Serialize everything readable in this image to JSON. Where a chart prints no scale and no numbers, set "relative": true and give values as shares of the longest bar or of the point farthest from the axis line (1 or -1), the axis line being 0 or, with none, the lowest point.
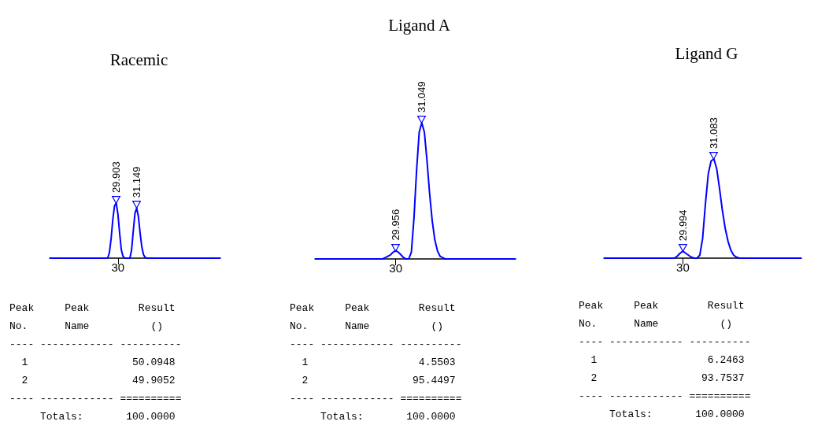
{
  "chart_data": [
    {
      "type": "line",
      "title": "Racemic",
      "relative": true,
      "grid": false,
      "marker": "none",
      "line_style": "solid",
      "color": "#0000ff",
      "categories": [
        null,
        null,
        null,
        null,
        null,
        null,
        null,
        null,
        null,
        null,
        null,
        null,
        null,
        null,
        null,
        null,
        null,
        null,
        null,
        null,
        null,
        null,
        null,
        null,
        null,
        null,
        null,
        null,
        null,
        null,
        null,
        null,
        null,
        null,
        null,
        null,
        null,
        null,
        null,
        null,
        null,
        null,
        null,
        null,
        null,
        null,
        null,
        null,
        null,
        null,
        null,
        null,
        null,
        null,
        null,
        null,
        null,
        null,
        null,
        null,
        null,
        null,
        null,
        null,
        null,
        null,
        null,
        null,
        null,
        null,
        null,
        null,
        null,
        null,
        null,
        null,
        null,
        null,
        null,
        null,
        null,
        null,
        null,
        null,
        null,
        null,
        null,
        null,
        null,
        null,
        null,
        null,
        null,
        null,
        null,
        null,
        null,
        null,
        null,
        null,
        null
      ],
      "values": [
        0,
        0,
        0,
        0,
        0,
        0,
        0,
        0,
        0,
        0,
        0,
        0,
        0,
        0,
        0,
        0,
        0,
        0,
        0,
        0,
        0,
        0,
        0,
        0,
        0,
        0,
        0,
        0,
        0,
        0,
        0,
        0,
        0,
        0,
        0,
        0.1,
        0.35,
        0.7,
        0.95,
        1,
        0.8,
        0.45,
        0.15,
        0.03,
        0,
        0,
        0,
        0,
        0.15,
        0.5,
        0.82,
        0.91,
        0.75,
        0.45,
        0.2,
        0.06,
        0.01,
        0,
        0,
        0,
        0,
        0,
        0,
        0,
        0,
        0,
        0,
        0,
        0,
        0,
        0,
        0,
        0,
        0,
        0,
        0,
        0,
        0,
        0,
        0,
        0,
        0,
        0,
        0,
        0,
        0,
        0,
        0,
        0,
        0,
        0,
        0,
        0,
        0,
        0,
        0,
        0,
        0,
        0,
        0,
        0
      ],
      "annotations": [
        "30",
        "29.903",
        "31.149",
        "Peak     Peak        Result",
        "No.      Name          ()",
        "---- ------------ ----------",
        "  1                 50.0948",
        "  2                 49.9052",
        "---- ------------ ==========",
        "     Totals:       100.0000"
      ]
    },
    {
      "type": "line",
      "title": "Ligand A",
      "relative": true,
      "grid": false,
      "marker": "none",
      "line_style": "solid",
      "color": "#0000ff",
      "categories": [
        null,
        null,
        null,
        null,
        null,
        null,
        null,
        null,
        null,
        null,
        null,
        null,
        null,
        null,
        null,
        null,
        null,
        null,
        null,
        null,
        null,
        null,
        null,
        null,
        null,
        null,
        null,
        null,
        null,
        null,
        null,
        null,
        null,
        null,
        null,
        null,
        null,
        null,
        null,
        null,
        null,
        null,
        null,
        null,
        null,
        null,
        null,
        null,
        null,
        null,
        null,
        null,
        null,
        null,
        null,
        null,
        null,
        null,
        null,
        null,
        null,
        null,
        null,
        null,
        null,
        null,
        null,
        null,
        null,
        null,
        null,
        null,
        null,
        null,
        null,
        null,
        null,
        null
      ],
      "values": [
        0,
        0,
        0,
        0,
        0,
        0,
        0,
        0,
        0,
        0,
        0,
        0,
        0,
        0,
        0,
        0,
        0,
        0,
        0,
        0,
        0,
        0,
        0,
        0,
        0,
        0,
        0,
        0.01,
        0.02,
        0.03,
        0.05,
        0.06,
        0.05,
        0.03,
        0.01,
        0,
        0,
        0.05,
        0.3,
        0.65,
        0.93,
        1,
        0.93,
        0.72,
        0.48,
        0.28,
        0.14,
        0.06,
        0.02,
        0.01,
        0,
        0,
        0,
        0,
        0,
        0,
        0,
        0,
        0,
        0,
        0,
        0,
        0,
        0,
        0,
        0,
        0,
        0,
        0,
        0,
        0,
        0,
        0,
        0,
        0,
        0,
        0,
        0
      ],
      "annotations": [
        "30",
        "29.956",
        "31.049",
        "Peak     Peak        Result",
        "No.      Name          ()",
        "---- ------------ ----------",
        "  1                  4.5503",
        "  2                 95.4497",
        "---- ------------ ==========",
        "     Totals:       100.0000"
      ]
    },
    {
      "type": "line",
      "title": "Ligand G",
      "relative": true,
      "grid": false,
      "marker": "none",
      "line_style": "solid",
      "color": "#0000ff",
      "categories": [
        null,
        null,
        null,
        null,
        null,
        null,
        null,
        null,
        null,
        null,
        null,
        null,
        null,
        null,
        null,
        null,
        null,
        null,
        null,
        null,
        null,
        null,
        null,
        null,
        null,
        null,
        null,
        null,
        null,
        null,
        null,
        null,
        null,
        null,
        null,
        null,
        null,
        null,
        null,
        null,
        null,
        null,
        null,
        null,
        null,
        null,
        null,
        null,
        null,
        null,
        null,
        null,
        null,
        null,
        null,
        null,
        null,
        null,
        null,
        null,
        null,
        null,
        null,
        null,
        null,
        null,
        null,
        null,
        null,
        null,
        null
      ],
      "values": [
        0,
        0,
        0,
        0,
        0,
        0,
        0,
        0,
        0,
        0,
        0,
        0,
        0,
        0,
        0,
        0,
        0,
        0,
        0,
        0,
        0,
        0,
        0,
        0,
        0,
        0,
        0.02,
        0.05,
        0.07,
        0.05,
        0.03,
        0.01,
        0,
        0,
        0.03,
        0.2,
        0.55,
        0.85,
        0.98,
        1,
        0.9,
        0.7,
        0.48,
        0.3,
        0.17,
        0.08,
        0.03,
        0.01,
        0,
        0,
        0,
        0,
        0,
        0,
        0,
        0,
        0,
        0,
        0,
        0,
        0,
        0,
        0,
        0,
        0,
        0,
        0,
        0,
        0,
        0,
        0
      ],
      "annotations": [
        "30",
        "29.994",
        "31.083",
        "Peak     Peak        Result",
        "No.      Name          ()",
        "---- ------------ ----------",
        "  1                  6.2463",
        "  2                 93.7537",
        "---- ------------ ==========",
        "     Totals:       100.0000"
      ]
    }
  ]
}
